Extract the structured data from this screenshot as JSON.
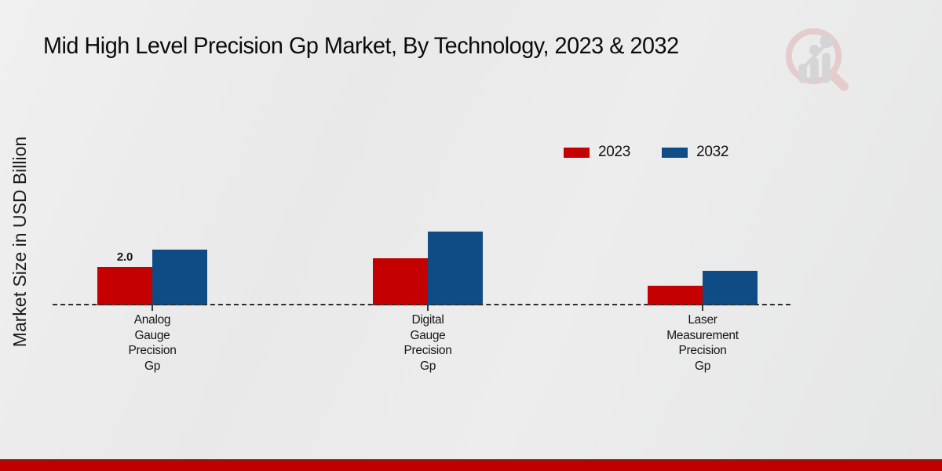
{
  "page": {
    "title": "Mid High Level Precision Gp Market, By Technology, 2023 & 2032",
    "y_axis_label": "Market Size in USD Billion"
  },
  "colors": {
    "series_2023": "#c40000",
    "series_2032": "#0f4c85",
    "footer_bar": "#c00000",
    "footer_bar_top_line": "#8e1414",
    "background": "#e9e9e9",
    "baseline": "#2e2e2e",
    "title_text": "#0b0b0b"
  },
  "chart_data": {
    "type": "bar",
    "title": "Mid High Level Precision Gp Market, By Technology, 2023 & 2032",
    "xlabel": "",
    "ylabel": "Market Size in USD Billion",
    "categories": [
      "Analog Gauge Precision Gp",
      "Digital Gauge Precision Gp",
      "Laser Measurement Precision Gp"
    ],
    "series": [
      {
        "name": "2023",
        "color": "#c40000",
        "values": [
          2.0,
          2.45,
          1.0
        ]
      },
      {
        "name": "2032",
        "color": "#0f4c85",
        "values": [
          2.9,
          3.85,
          1.8
        ]
      }
    ],
    "data_labels": [
      {
        "series_index": 0,
        "category_index": 0,
        "text": "2.0"
      }
    ],
    "ylim": [
      0,
      4
    ],
    "grid": false,
    "axis_line_style": "dashed-baseline-only",
    "legend_position": "top-right"
  },
  "logo": {
    "name": "magnifier-growth-chart-logo"
  }
}
